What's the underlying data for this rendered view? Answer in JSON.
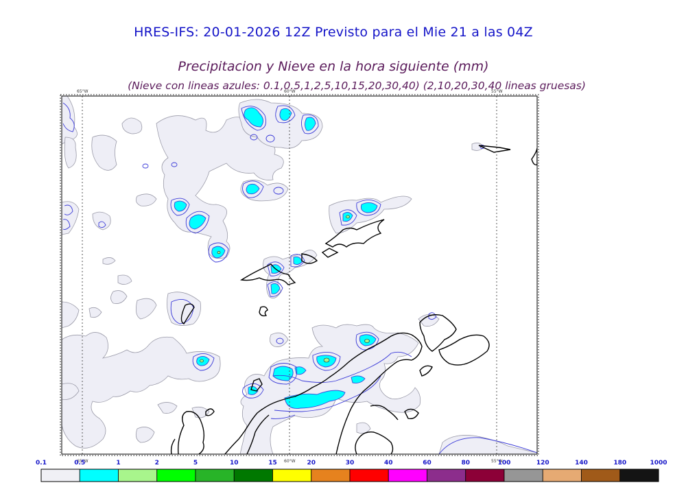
{
  "title": "HRES-IFS: 20-01-2026 12Z Previsto para el Mie 21 a las 04Z",
  "subtitle": "Precipitacion y Nieve en la hora siguiente (mm)",
  "subtitle2": "(Nieve con lineas azules: 0.1,0.5,1,2,5,10,15,20,30,40)  (2,10,20,30,40 lineas gruesas)",
  "map_labels": {
    "lon_65w": "65°W",
    "lon_60w": "60°W",
    "lon_55w": "55°W"
  },
  "colorbar": {
    "labels": [
      "0.1",
      "0.5",
      "1",
      "2",
      "5",
      "10",
      "15",
      "20",
      "30",
      "40",
      "60",
      "80",
      "100",
      "120",
      "140",
      "180",
      "1000"
    ],
    "colors": [
      "#f0f0f5",
      "#00ffff",
      "#a8f58c",
      "#00ff00",
      "#28b428",
      "#007800",
      "#ffff00",
      "#e6821e",
      "#ff0000",
      "#ff00ff",
      "#8c2d8c",
      "#8c0037",
      "#969696",
      "#e6aa73",
      "#a05a19",
      "#141414"
    ]
  }
}
